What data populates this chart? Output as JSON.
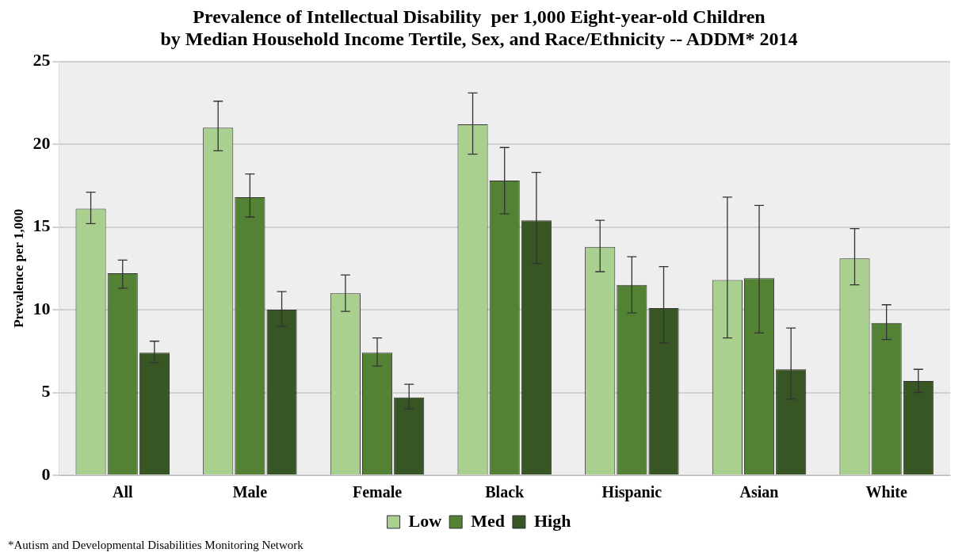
{
  "chart_data": {
    "type": "bar",
    "title": "Prevalence of Intellectual Disability  per 1,000 Eight-year-old Children\nby Median Household Income Tertile, Sex, and Race/Ethnicity -- ADDM* 2014",
    "ylabel": "Prevalence per 1,000",
    "categories": [
      "All",
      "Male",
      "Female",
      "Black",
      "Hispanic",
      "Asian",
      "White"
    ],
    "series": [
      {
        "name": "Low",
        "color": "#a9d08e",
        "values": [
          16.1,
          21.0,
          11.0,
          21.2,
          13.8,
          11.8,
          13.1
        ],
        "errors": [
          [
            15.2,
            17.1
          ],
          [
            19.6,
            22.6
          ],
          [
            9.9,
            12.1
          ],
          [
            19.4,
            23.1
          ],
          [
            12.3,
            15.4
          ],
          [
            8.3,
            16.8
          ],
          [
            11.5,
            14.9
          ]
        ]
      },
      {
        "name": "Med",
        "color": "#548235",
        "values": [
          12.2,
          16.8,
          7.4,
          17.8,
          11.5,
          11.9,
          9.2
        ],
        "errors": [
          [
            11.3,
            13.0
          ],
          [
            15.6,
            18.2
          ],
          [
            6.6,
            8.3
          ],
          [
            15.8,
            19.8
          ],
          [
            9.8,
            13.2
          ],
          [
            8.6,
            16.3
          ],
          [
            8.2,
            10.3
          ]
        ]
      },
      {
        "name": "High",
        "color": "#375623",
        "values": [
          7.4,
          10.0,
          4.7,
          15.4,
          10.1,
          6.4,
          5.7
        ],
        "errors": [
          [
            6.8,
            8.1
          ],
          [
            9.0,
            11.1
          ],
          [
            4.0,
            5.5
          ],
          [
            12.8,
            18.3
          ],
          [
            8.0,
            12.6
          ],
          [
            4.6,
            8.9
          ],
          [
            5.0,
            6.4
          ]
        ]
      }
    ],
    "ylim": [
      0,
      25
    ],
    "yticks": [
      0,
      5,
      10,
      15,
      20,
      25
    ],
    "grid": "y",
    "legend": "bottom",
    "annotations": [
      "*Autism and Developmental Disabilities Monitoring Network"
    ]
  }
}
